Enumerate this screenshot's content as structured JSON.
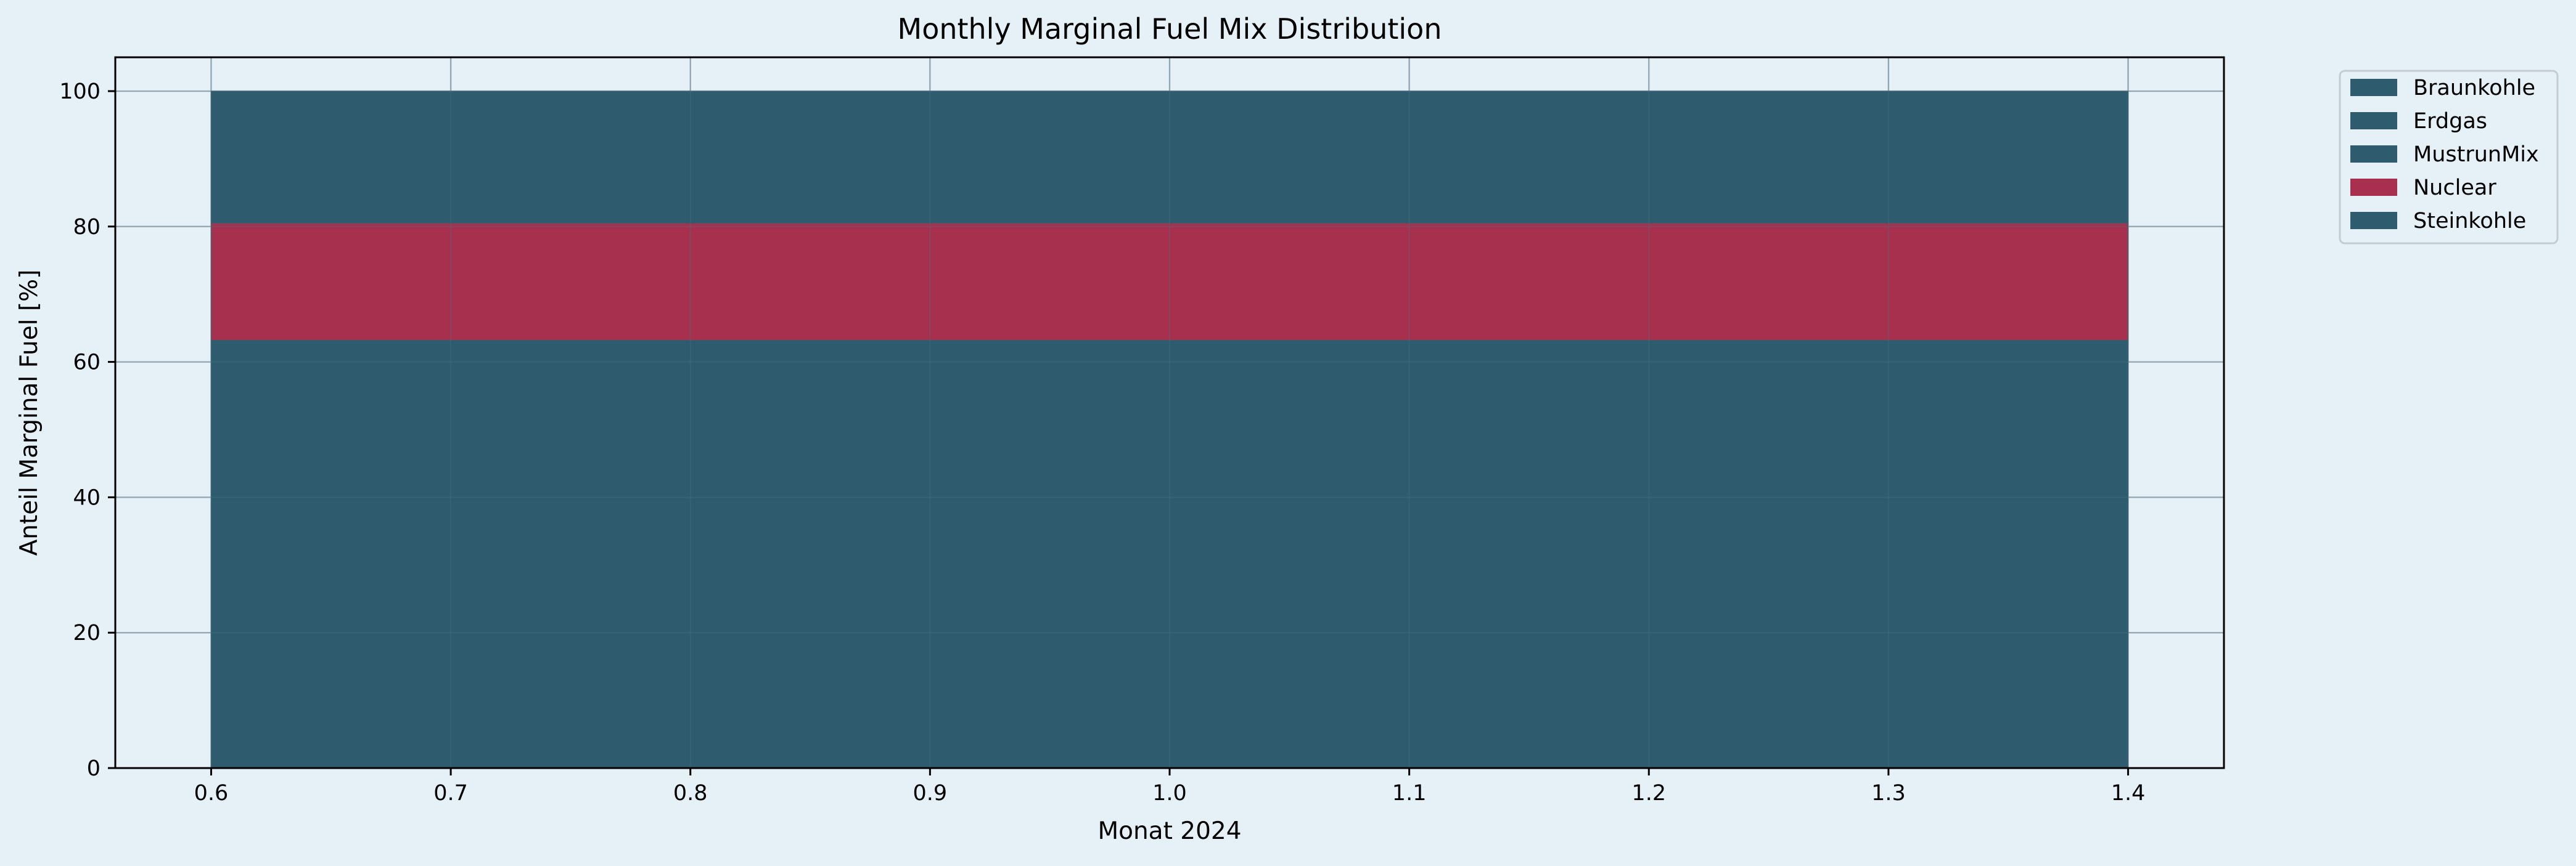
{
  "chart_data": {
    "type": "bar",
    "title": "Monthly Marginal Fuel Mix Distribution",
    "xlabel": "Monat 2024",
    "ylabel": "Anteil Marginal Fuel [%]",
    "stacked": true,
    "categories": [
      1
    ],
    "bar_width": 0.8,
    "xlim": [
      0.56,
      1.44
    ],
    "ylim": [
      0,
      105
    ],
    "xticks": [
      0.6,
      0.7,
      0.8,
      0.9,
      1.0,
      1.1,
      1.2,
      1.3,
      1.4
    ],
    "xtick_labels": [
      "0.6",
      "0.7",
      "0.8",
      "0.9",
      "1.0",
      "1.1",
      "1.2",
      "1.3",
      "1.4"
    ],
    "yticks": [
      0,
      20,
      40,
      60,
      80,
      100
    ],
    "ytick_labels": [
      "0",
      "20",
      "40",
      "60",
      "80",
      "100"
    ],
    "grid": true,
    "legend_position": "outside top-right",
    "series": [
      {
        "name": "Braunkohle",
        "values": [
          0
        ],
        "color": "#2e5c6e"
      },
      {
        "name": "Erdgas",
        "values": [
          0
        ],
        "color": "#2e5c6e"
      },
      {
        "name": "MustrunMix",
        "values": [
          63.2
        ],
        "color": "#2e5c6e"
      },
      {
        "name": "Nuclear",
        "values": [
          17.3
        ],
        "color": "#a8304f"
      },
      {
        "name": "Steinkohle",
        "values": [
          19.5
        ],
        "color": "#2e5c6e"
      }
    ]
  }
}
